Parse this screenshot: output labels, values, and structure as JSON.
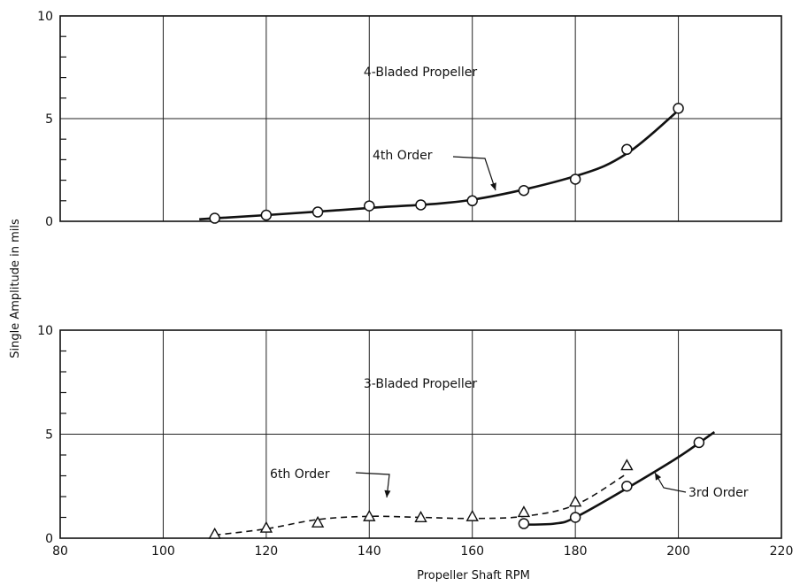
{
  "ylabel": "Single Amplitude in mils",
  "xlabel": "Propeller Shaft RPM",
  "chart_data": [
    {
      "type": "line",
      "title": "4-Bladed Propeller",
      "xlim": [
        80,
        220
      ],
      "ylim": [
        0,
        10
      ],
      "yticks": [
        "0",
        "5",
        "10"
      ],
      "grid": true,
      "series": [
        {
          "name": "4th Order",
          "marker": "circle",
          "style": "solid",
          "points": [
            [
              110,
              0.15
            ],
            [
              120,
              0.3
            ],
            [
              130,
              0.45
            ],
            [
              140,
              0.75
            ],
            [
              150,
              0.8
            ],
            [
              160,
              1.0
            ],
            [
              170,
              1.5
            ],
            [
              180,
              2.05
            ],
            [
              190,
              3.5
            ],
            [
              200,
              5.5
            ]
          ],
          "curve": [
            [
              107,
              0.1
            ],
            [
              120,
              0.3
            ],
            [
              140,
              0.65
            ],
            [
              160,
              1.05
            ],
            [
              180,
              2.2
            ],
            [
              190,
              3.3
            ],
            [
              200,
              5.4
            ]
          ]
        }
      ]
    },
    {
      "type": "line",
      "title": "3-Bladed Propeller",
      "xlim": [
        80,
        220
      ],
      "ylim": [
        0,
        10
      ],
      "yticks": [
        "0",
        "5",
        "10"
      ],
      "xticks": [
        "80",
        "100",
        "120",
        "140",
        "160",
        "180",
        "200",
        "220"
      ],
      "grid": true,
      "series": [
        {
          "name": "6th Order",
          "marker": "triangle",
          "style": "dashed",
          "points": [
            [
              110,
              0.2
            ],
            [
              120,
              0.5
            ],
            [
              130,
              0.75
            ],
            [
              140,
              1.05
            ],
            [
              150,
              1.0
            ],
            [
              160,
              1.05
            ],
            [
              170,
              1.25
            ],
            [
              180,
              1.75
            ],
            [
              190,
              3.5
            ]
          ],
          "curve": [
            [
              110,
              0.15
            ],
            [
              120,
              0.45
            ],
            [
              130,
              0.9
            ],
            [
              140,
              1.05
            ],
            [
              150,
              1.0
            ],
            [
              160,
              0.95
            ],
            [
              170,
              1.05
            ],
            [
              180,
              1.6
            ],
            [
              190,
              3.1
            ]
          ]
        },
        {
          "name": "3rd Order",
          "marker": "circle",
          "style": "solid",
          "points": [
            [
              170,
              0.7
            ],
            [
              180,
              1.0
            ],
            [
              190,
              2.5
            ],
            [
              204,
              4.6
            ]
          ],
          "curve": [
            [
              170,
              0.65
            ],
            [
              176,
              0.7
            ],
            [
              180,
              1.0
            ],
            [
              190,
              2.4
            ],
            [
              200,
              3.9
            ],
            [
              207,
              5.1
            ]
          ]
        }
      ]
    }
  ]
}
